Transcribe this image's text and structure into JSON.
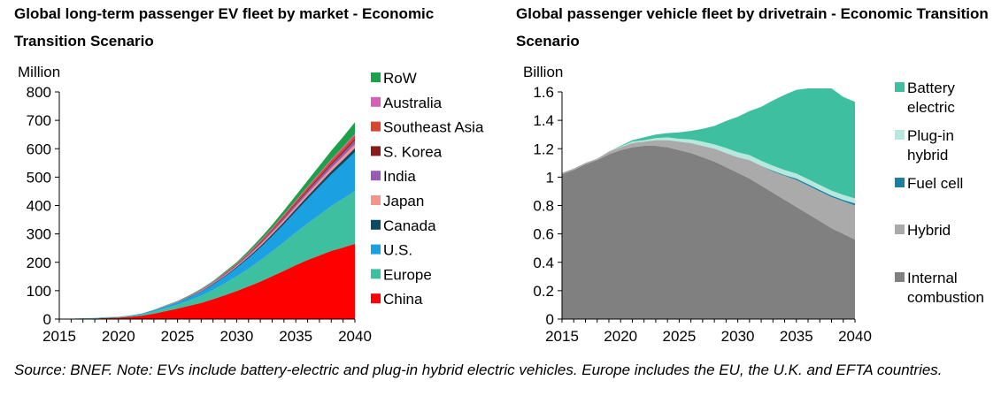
{
  "chart_data": [
    {
      "type": "area",
      "title": "Global long-term passenger EV fleet by market - Economic Transition Scenario",
      "ylabel": "Million",
      "ylim": [
        0,
        800
      ],
      "yticks": [
        0,
        100,
        200,
        300,
        400,
        500,
        600,
        700,
        800
      ],
      "x": [
        2015,
        2016,
        2017,
        2018,
        2019,
        2020,
        2021,
        2022,
        2023,
        2024,
        2025,
        2026,
        2027,
        2028,
        2029,
        2030,
        2031,
        2032,
        2033,
        2034,
        2035,
        2036,
        2037,
        2038,
        2039,
        2040
      ],
      "xticks": [
        2015,
        2020,
        2025,
        2030,
        2035,
        2040
      ],
      "legend_position": "right",
      "stacked": true,
      "series": [
        {
          "name": "China",
          "color": "#ff0000",
          "values": [
            1,
            1,
            2,
            2,
            4,
            5,
            8,
            12,
            19,
            28,
            37,
            47,
            57,
            70,
            84,
            99,
            115,
            132,
            151,
            170,
            190,
            208,
            224,
            240,
            252,
            265
          ]
        },
        {
          "name": "Europe",
          "color": "#3dbfa0",
          "values": [
            0,
            0,
            1,
            1,
            2,
            2,
            3,
            5,
            8,
            11,
            14,
            19,
            25,
            33,
            42,
            52,
            63,
            75,
            88,
            101,
            115,
            129,
            143,
            158,
            172,
            186
          ]
        },
        {
          "name": "U.S.",
          "color": "#1ba0e2",
          "values": [
            0,
            0,
            0,
            1,
            1,
            1,
            2,
            3,
            4,
            6,
            8,
            11,
            14,
            18,
            23,
            29,
            36,
            44,
            53,
            63,
            74,
            86,
            99,
            111,
            124,
            137
          ]
        },
        {
          "name": "Canada",
          "color": "#0b4a63",
          "values": [
            0,
            0,
            0,
            0,
            0,
            0,
            0,
            0,
            1,
            1,
            1,
            2,
            2,
            3,
            3,
            4,
            5,
            6,
            7,
            8,
            9,
            10,
            11,
            12,
            13,
            14
          ]
        },
        {
          "name": "Japan",
          "color": "#f4948a",
          "values": [
            0,
            0,
            0,
            0,
            0,
            0,
            0,
            0,
            1,
            1,
            1,
            1,
            2,
            2,
            3,
            3,
            4,
            5,
            6,
            7,
            8,
            9,
            10,
            11,
            12,
            13
          ]
        },
        {
          "name": "India",
          "color": "#9b59b6",
          "values": [
            0,
            0,
            0,
            0,
            0,
            0,
            0,
            0,
            0,
            1,
            1,
            1,
            2,
            2,
            3,
            3,
            4,
            5,
            6,
            7,
            8,
            9,
            10,
            11,
            12,
            14
          ]
        },
        {
          "name": "S. Korea",
          "color": "#8b1a1a",
          "values": [
            0,
            0,
            0,
            0,
            0,
            0,
            0,
            0,
            0,
            0,
            1,
            1,
            1,
            1,
            2,
            2,
            2,
            3,
            3,
            4,
            4,
            5,
            5,
            6,
            6,
            7
          ]
        },
        {
          "name": "Southeast Asia",
          "color": "#d9462f",
          "values": [
            0,
            0,
            0,
            0,
            0,
            0,
            0,
            0,
            0,
            0,
            0,
            1,
            1,
            1,
            2,
            2,
            3,
            4,
            5,
            6,
            7,
            8,
            9,
            10,
            11,
            12
          ]
        },
        {
          "name": "Australia",
          "color": "#d35fb7",
          "values": [
            0,
            0,
            0,
            0,
            0,
            0,
            0,
            0,
            0,
            0,
            0,
            0,
            1,
            1,
            1,
            1,
            2,
            2,
            2,
            3,
            3,
            3,
            4,
            4,
            5,
            5
          ]
        },
        {
          "name": "RoW",
          "color": "#1aa14a",
          "values": [
            0,
            0,
            0,
            0,
            0,
            0,
            0,
            0,
            0,
            1,
            1,
            1,
            2,
            3,
            4,
            5,
            7,
            9,
            11,
            14,
            17,
            21,
            25,
            30,
            35,
            40
          ]
        }
      ]
    },
    {
      "type": "area",
      "title": "Global passenger vehicle fleet by drivetrain - Economic Transition Scenario",
      "ylabel": "Billion",
      "ylim": [
        0,
        1.6
      ],
      "yticks": [
        0,
        0.2,
        0.4,
        0.6,
        0.8,
        1,
        1.2,
        1.4,
        1.6
      ],
      "x": [
        2015,
        2016,
        2017,
        2018,
        2019,
        2020,
        2021,
        2022,
        2023,
        2024,
        2025,
        2026,
        2027,
        2028,
        2029,
        2030,
        2031,
        2032,
        2033,
        2034,
        2035,
        2036,
        2037,
        2038,
        2039,
        2040
      ],
      "xticks": [
        2015,
        2020,
        2025,
        2030,
        2035,
        2040
      ],
      "legend_position": "right",
      "stacked": true,
      "series": [
        {
          "name": "Internal combustion",
          "color": "#808080",
          "values": [
            1.02,
            1.05,
            1.09,
            1.12,
            1.16,
            1.19,
            1.21,
            1.22,
            1.22,
            1.21,
            1.19,
            1.17,
            1.14,
            1.11,
            1.07,
            1.03,
            0.99,
            0.94,
            0.89,
            0.84,
            0.79,
            0.74,
            0.69,
            0.64,
            0.6,
            0.56
          ]
        },
        {
          "name": "Hybrid",
          "color": "#aaaaaa",
          "values": [
            0.01,
            0.01,
            0.01,
            0.01,
            0.02,
            0.02,
            0.03,
            0.03,
            0.04,
            0.05,
            0.06,
            0.07,
            0.08,
            0.09,
            0.1,
            0.11,
            0.13,
            0.14,
            0.15,
            0.17,
            0.19,
            0.2,
            0.21,
            0.22,
            0.23,
            0.24
          ]
        },
        {
          "name": "Fuel cell",
          "color": "#1a7fa0",
          "values": [
            0,
            0,
            0,
            0,
            0,
            0,
            0,
            0,
            0,
            0,
            0,
            0,
            0,
            0,
            0,
            0,
            0,
            0,
            0.005,
            0.005,
            0.01,
            0.01,
            0.01,
            0.01,
            0.01,
            0.015
          ]
        },
        {
          "name": "Plug-in hybrid",
          "color": "#b7e8dd",
          "values": [
            0,
            0,
            0,
            0,
            0,
            0.005,
            0.01,
            0.01,
            0.015,
            0.02,
            0.02,
            0.025,
            0.03,
            0.03,
            0.035,
            0.035,
            0.035,
            0.035,
            0.035,
            0.035,
            0.035,
            0.035,
            0.035,
            0.035,
            0.035,
            0.035
          ]
        },
        {
          "name": "Battery electric",
          "color": "#3dbfa0",
          "values": [
            0,
            0,
            0,
            0,
            0,
            0.005,
            0.01,
            0.02,
            0.025,
            0.03,
            0.045,
            0.06,
            0.09,
            0.13,
            0.19,
            0.25,
            0.31,
            0.38,
            0.46,
            0.53,
            0.59,
            0.64,
            0.68,
            0.72,
            0.69,
            0.68
          ]
        }
      ]
    }
  ],
  "source_note": "Source: BNEF. Note: EVs include battery-electric and plug-in hybrid electric vehicles. Europe includes the EU, the U.K. and EFTA countries."
}
